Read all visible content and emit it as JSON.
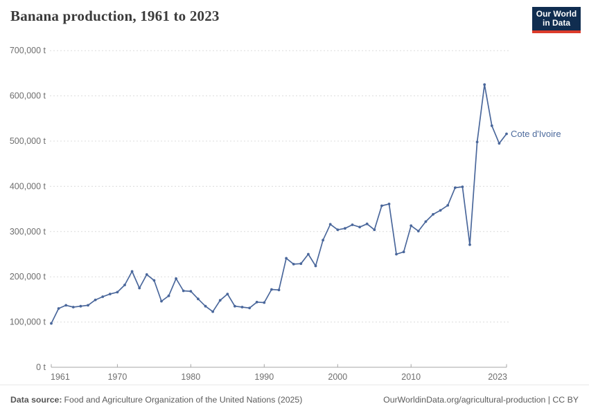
{
  "title": "Banana production, 1961 to 2023",
  "logo": {
    "line1": "Our World",
    "line2": "in Data"
  },
  "footer": {
    "source_label": "Data source:",
    "source_text": "Food and Agriculture Organization of the United Nations (2025)",
    "link_text": "OurWorldinData.org/agricultural-production | CC BY"
  },
  "colors": {
    "line": "#4a679b",
    "series_label": "#4c6a9c",
    "grid": "#dcdcdc",
    "axis": "#a5a5a5",
    "tick_text": "#6e6e6e",
    "title_text": "#3b3b3b",
    "logo_bg": "#102d50",
    "logo_accent": "#dc3b2b",
    "footer_text": "#5b5b5b"
  },
  "chart_data": {
    "type": "line",
    "title": "Banana production, 1961 to 2023",
    "unit": "t",
    "xlabel": "",
    "ylabel": "",
    "xlim": [
      1961,
      2023
    ],
    "ylim": [
      0,
      700000
    ],
    "grid": "horizontal-dashed",
    "legend_position": "end-of-line-label",
    "x_ticks": [
      1961,
      1970,
      1980,
      1990,
      2000,
      2010,
      2023
    ],
    "x_tick_labels": [
      "1961",
      "1970",
      "1980",
      "1990",
      "2000",
      "2010",
      "2023"
    ],
    "y_ticks": [
      0,
      100000,
      200000,
      300000,
      400000,
      500000,
      600000,
      700000
    ],
    "y_tick_labels": [
      "0 t",
      "100,000 t",
      "200,000 t",
      "300,000 t",
      "400,000 t",
      "500,000 t",
      "600,000 t",
      "700,000 t"
    ],
    "series": [
      {
        "name": "Cote d'Ivoire",
        "x": [
          1961,
          1962,
          1963,
          1964,
          1965,
          1966,
          1967,
          1968,
          1969,
          1970,
          1971,
          1972,
          1973,
          1974,
          1975,
          1976,
          1977,
          1978,
          1979,
          1980,
          1981,
          1982,
          1983,
          1984,
          1985,
          1986,
          1987,
          1988,
          1989,
          1990,
          1991,
          1992,
          1993,
          1994,
          1995,
          1996,
          1997,
          1998,
          1999,
          2000,
          2001,
          2002,
          2003,
          2004,
          2005,
          2006,
          2007,
          2008,
          2009,
          2010,
          2011,
          2012,
          2013,
          2014,
          2015,
          2016,
          2017,
          2018,
          2019,
          2020,
          2021,
          2022,
          2023
        ],
        "values": [
          97000,
          130000,
          137000,
          133000,
          135000,
          137000,
          149000,
          156000,
          162000,
          166000,
          182000,
          212000,
          175000,
          205000,
          192000,
          146000,
          158000,
          196000,
          169000,
          168000,
          151000,
          135000,
          123000,
          148000,
          162000,
          135000,
          133000,
          131000,
          144000,
          143000,
          172000,
          171000,
          241000,
          228000,
          229000,
          250000,
          224000,
          281000,
          316000,
          304000,
          307000,
          315000,
          310000,
          317000,
          304000,
          357000,
          361000,
          250000,
          255000,
          313000,
          301000,
          322000,
          338000,
          347000,
          358000,
          397000,
          399000,
          271000,
          498000,
          625000,
          534000,
          495000,
          516000
        ]
      }
    ]
  }
}
